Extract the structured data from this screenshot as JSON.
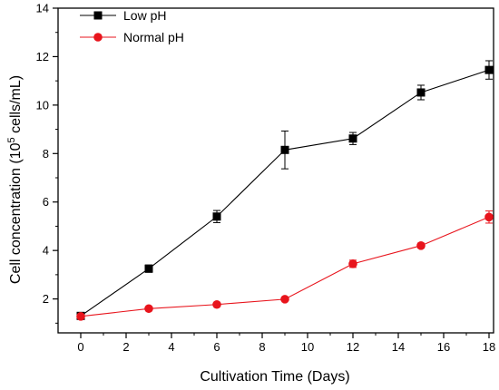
{
  "chart_data": {
    "type": "line",
    "xlabel": "Cultivation Time (Days)",
    "ylabel": {
      "prefix": "Cell concentration (10",
      "superscript": "5",
      "suffix": " cells/mL)"
    },
    "xlim": [
      -1,
      18.2
    ],
    "ylim": [
      0.6,
      14
    ],
    "xticks": [
      0,
      2,
      4,
      6,
      8,
      10,
      12,
      14,
      16,
      18
    ],
    "yticks": [
      2,
      4,
      6,
      8,
      10,
      12,
      14
    ],
    "grid": false,
    "legend": "top-left",
    "series": [
      {
        "name": "Low pH",
        "color": "#000000",
        "marker": "square",
        "x": [
          0,
          3,
          6,
          9,
          12,
          15,
          18
        ],
        "y": [
          1.3,
          3.25,
          5.4,
          8.15,
          8.62,
          10.52,
          11.45
        ],
        "err": [
          0.1,
          0.15,
          0.25,
          0.78,
          0.25,
          0.3,
          0.38
        ]
      },
      {
        "name": "Normal pH",
        "color": "#e8141c",
        "marker": "circle",
        "x": [
          0,
          3,
          6,
          9,
          12,
          15,
          18
        ],
        "y": [
          1.28,
          1.6,
          1.77,
          1.99,
          3.45,
          4.2,
          5.38
        ],
        "err": [
          0.05,
          0.05,
          0.05,
          0.05,
          0.15,
          0.1,
          0.25
        ]
      }
    ]
  }
}
